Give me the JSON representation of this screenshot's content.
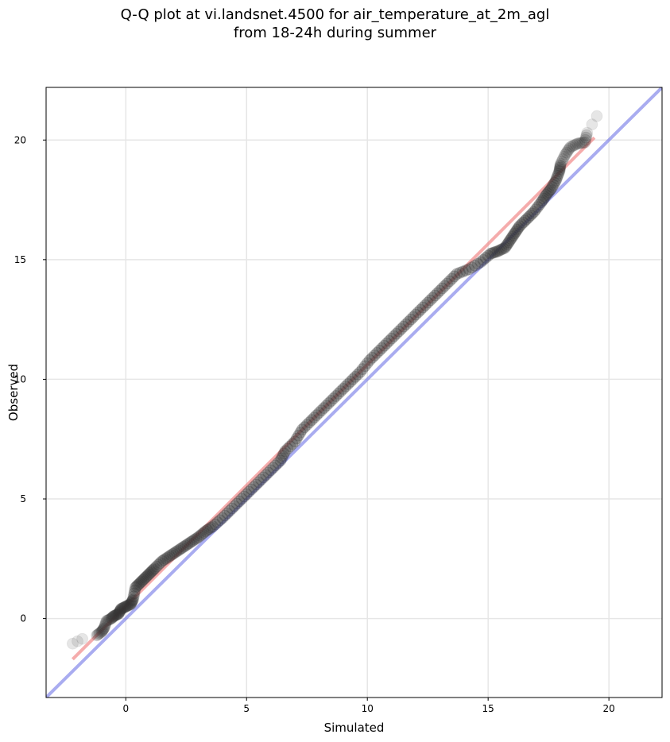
{
  "chart_data": {
    "type": "scatter",
    "title": "Q-Q plot at vi.landsnet.4500 for air_temperature_at_2m_agl",
    "subtitle": "from 18-24h during summer",
    "xlabel": "Simulated",
    "ylabel": "Observed",
    "xlim": [
      -3.3,
      22.2
    ],
    "ylim": [
      -3.3,
      22.2
    ],
    "xticks": [
      0,
      5,
      10,
      15,
      20
    ],
    "yticks": [
      0,
      5,
      10,
      15,
      20
    ],
    "grid": true,
    "legend": "none",
    "colors": {
      "points": "#333333",
      "identity_line": "#6f74e6",
      "fit_line": "#f08080",
      "grid": "#e6e6e6"
    },
    "identity_line": {
      "x": [
        -3.3,
        22.2
      ],
      "y": [
        -3.3,
        22.2
      ]
    },
    "fit_line": {
      "x": [
        -2.2,
        19.4
      ],
      "y": [
        -1.7,
        20.1
      ]
    },
    "series": [
      {
        "points": [
          [
            -2.2,
            -1.05
          ],
          [
            -2.0,
            -0.95
          ],
          [
            -1.8,
            -0.85
          ],
          [
            -1.2,
            -0.7
          ],
          [
            -1.0,
            -0.55
          ],
          [
            -0.9,
            -0.4
          ],
          [
            -0.8,
            -0.1
          ],
          [
            -0.6,
            0.0
          ],
          [
            -0.5,
            0.1
          ],
          [
            -0.3,
            0.2
          ],
          [
            -0.2,
            0.4
          ],
          [
            0.0,
            0.5
          ],
          [
            0.2,
            0.6
          ],
          [
            0.3,
            0.8
          ],
          [
            0.4,
            1.3
          ],
          [
            0.6,
            1.5
          ],
          [
            0.8,
            1.7
          ],
          [
            1.0,
            1.9
          ],
          [
            1.2,
            2.1
          ],
          [
            1.5,
            2.4
          ],
          [
            1.8,
            2.6
          ],
          [
            2.1,
            2.8
          ],
          [
            2.4,
            3.0
          ],
          [
            2.7,
            3.2
          ],
          [
            3.0,
            3.4
          ],
          [
            3.3,
            3.65
          ],
          [
            3.6,
            3.85
          ],
          [
            4.0,
            4.2
          ],
          [
            4.4,
            4.6
          ],
          [
            4.8,
            5.0
          ],
          [
            5.2,
            5.4
          ],
          [
            5.6,
            5.8
          ],
          [
            6.0,
            6.2
          ],
          [
            6.4,
            6.6
          ],
          [
            6.6,
            7.0
          ],
          [
            7.0,
            7.4
          ],
          [
            7.3,
            7.9
          ],
          [
            7.7,
            8.3
          ],
          [
            8.1,
            8.7
          ],
          [
            8.5,
            9.1
          ],
          [
            8.9,
            9.5
          ],
          [
            9.3,
            9.9
          ],
          [
            9.7,
            10.3
          ],
          [
            10.1,
            10.8
          ],
          [
            10.5,
            11.2
          ],
          [
            10.9,
            11.6
          ],
          [
            11.3,
            12.0
          ],
          [
            11.7,
            12.4
          ],
          [
            12.1,
            12.8
          ],
          [
            12.5,
            13.2
          ],
          [
            12.9,
            13.6
          ],
          [
            13.3,
            14.0
          ],
          [
            13.7,
            14.4
          ],
          [
            14.2,
            14.6
          ],
          [
            14.7,
            14.9
          ],
          [
            15.1,
            15.25
          ],
          [
            15.4,
            15.35
          ],
          [
            15.7,
            15.5
          ],
          [
            15.9,
            15.8
          ],
          [
            16.1,
            16.1
          ],
          [
            16.3,
            16.4
          ],
          [
            16.6,
            16.7
          ],
          [
            16.9,
            17.0
          ],
          [
            17.2,
            17.4
          ],
          [
            17.4,
            17.7
          ],
          [
            17.6,
            17.95
          ],
          [
            17.8,
            18.3
          ],
          [
            17.95,
            18.7
          ],
          [
            18.0,
            19.0
          ],
          [
            18.2,
            19.4
          ],
          [
            18.4,
            19.7
          ],
          [
            18.7,
            19.85
          ],
          [
            19.0,
            19.9
          ],
          [
            19.1,
            20.3
          ],
          [
            19.3,
            20.65
          ],
          [
            19.5,
            21.0
          ]
        ]
      }
    ]
  }
}
